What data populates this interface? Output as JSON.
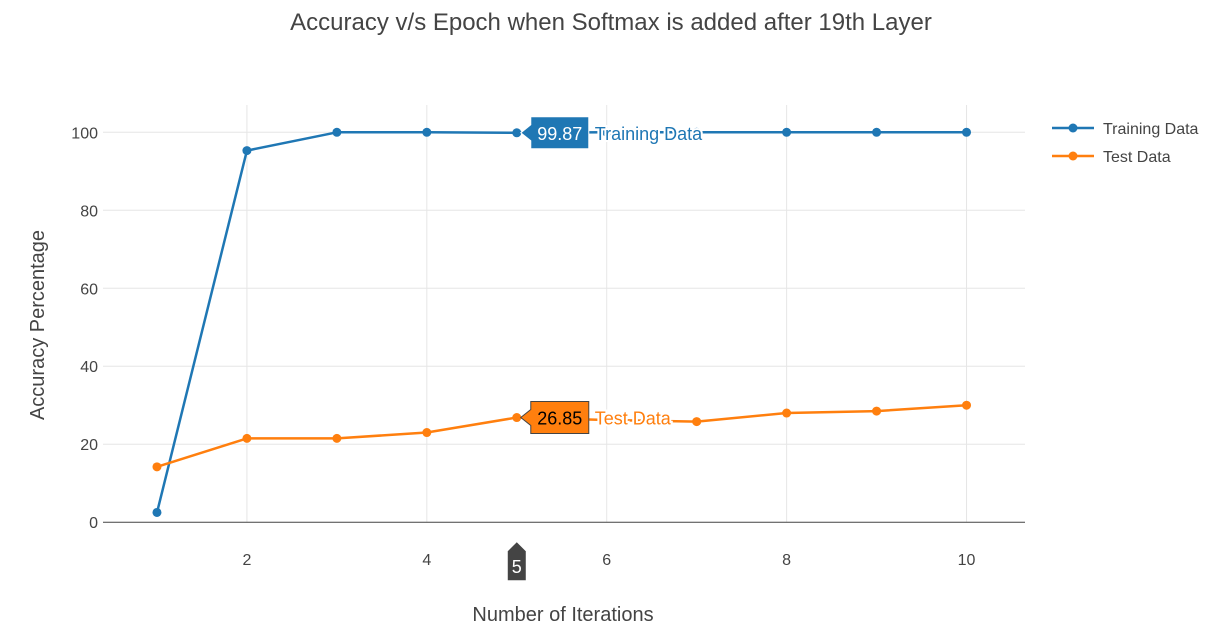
{
  "chart_data": {
    "type": "line",
    "title": "Accuracy v/s Epoch when Softmax is added after 19th Layer",
    "xlabel": "Number of Iterations",
    "ylabel": "Accuracy Percentage",
    "xlim": [
      0.4,
      10.65
    ],
    "ylim": [
      -2,
      107
    ],
    "xticks": [
      2,
      4,
      6,
      8,
      10
    ],
    "yticks": [
      0,
      20,
      40,
      60,
      80,
      100
    ],
    "grid": true,
    "legend_position": "top-right",
    "series": [
      {
        "name": "Training Data",
        "color": "#1f77b4",
        "x": [
          1,
          2,
          3,
          4,
          5,
          6,
          7,
          8,
          9,
          10
        ],
        "y": [
          2.5,
          95.3,
          100,
          100,
          99.87,
          100,
          100,
          100,
          100,
          100
        ]
      },
      {
        "name": "Test Data",
        "color": "#ff7f0e",
        "x": [
          1,
          2,
          3,
          4,
          5,
          6,
          7,
          8,
          9,
          10
        ],
        "y": [
          14.2,
          21.5,
          21.5,
          23.0,
          26.85,
          26.2,
          25.8,
          28.0,
          28.5,
          30.0
        ]
      }
    ],
    "hover": {
      "x_label": "5",
      "labels": [
        {
          "series": "Training Data",
          "value": "99.87"
        },
        {
          "series": "Test Data",
          "value": "26.85"
        }
      ]
    }
  }
}
